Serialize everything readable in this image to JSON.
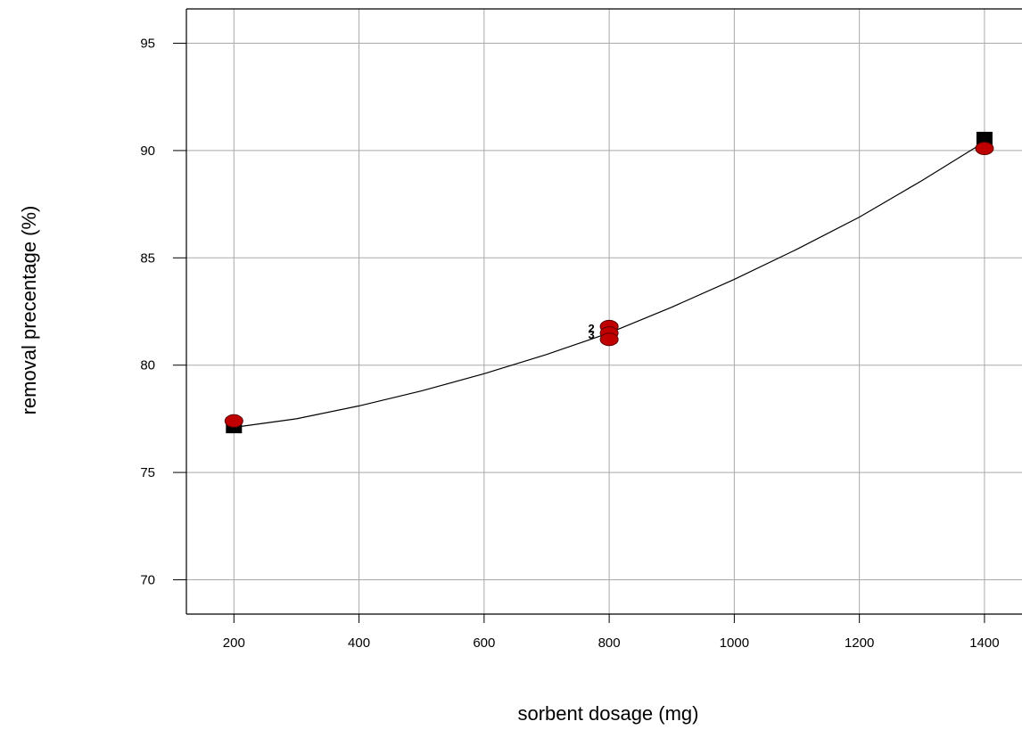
{
  "chart_data": {
    "type": "scatter",
    "title": "",
    "xlabel": "sorbent dosage (mg)",
    "ylabel": "removal precentage (%)",
    "xlim": [
      124,
      1460
    ],
    "ylim": [
      68.4,
      96.6
    ],
    "x_ticks": [
      200,
      400,
      600,
      800,
      1000,
      1200,
      1400
    ],
    "y_ticks": [
      70,
      75,
      80,
      85,
      90,
      95
    ],
    "grid": true,
    "legend": "none",
    "colors": {
      "actual_point": "#c00000",
      "actual_point_edge": "#5a0000",
      "predicted_point": "#000000",
      "fit_curve": "#000000",
      "grid": "#a9a9a9",
      "axis": "#000000"
    },
    "series": [
      {
        "style": "curve",
        "x": [
          200,
          300,
          400,
          500,
          600,
          700,
          800,
          900,
          1000,
          1100,
          1200,
          1300,
          1400
        ],
        "values": [
          77.1,
          77.5,
          78.1,
          78.8,
          79.6,
          80.5,
          81.5,
          82.7,
          84.0,
          85.4,
          86.9,
          88.6,
          90.4
        ]
      },
      {
        "style": "square-markers",
        "x": [
          200,
          800,
          1400
        ],
        "values": [
          77.2,
          81.5,
          90.5
        ]
      },
      {
        "style": "circle-markers",
        "x": [
          200,
          800,
          800,
          800,
          1400
        ],
        "values": [
          77.4,
          81.8,
          81.5,
          81.2,
          90.1
        ]
      }
    ],
    "annotations": [
      {
        "text": "2",
        "x": 800,
        "y": 81.7
      },
      {
        "text": "3",
        "x": 800,
        "y": 81.4
      }
    ]
  }
}
